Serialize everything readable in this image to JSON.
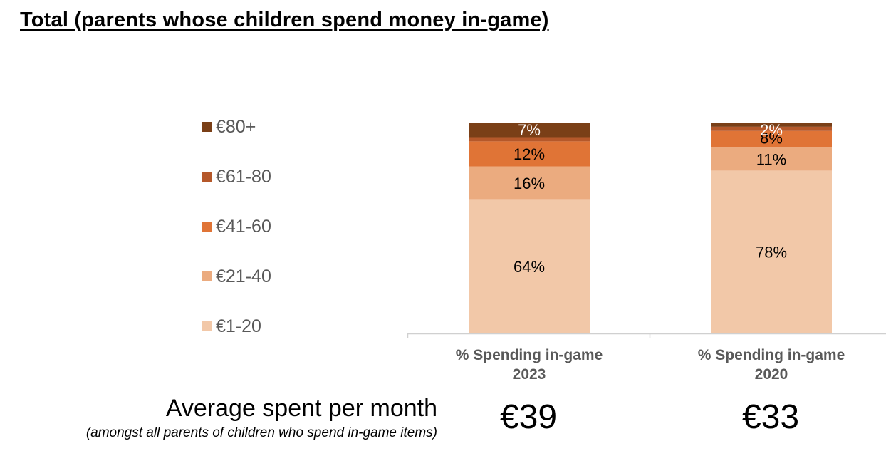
{
  "title": "Total (parents whose children spend money in-game)",
  "chart_data": {
    "type": "bar",
    "stacked": true,
    "categories": [
      [
        "% Spending in-game",
        "2023"
      ],
      [
        "% Spending in-game",
        "2020"
      ]
    ],
    "series": [
      {
        "name": "€1-20",
        "values": [
          64,
          78
        ],
        "color": "#F2C8A8",
        "label_color": "#000000"
      },
      {
        "name": "€21-40",
        "values": [
          16,
          11
        ],
        "color": "#EBAB7F",
        "label_color": "#000000"
      },
      {
        "name": "€41-60",
        "values": [
          12,
          8
        ],
        "color": "#E07436",
        "label_color": "#000000"
      },
      {
        "name": "€61-80",
        "values": [
          2,
          2
        ],
        "color": "#B5582A",
        "label_color": "#000000"
      },
      {
        "name": "€80+",
        "values": [
          7,
          2
        ],
        "color": "#7A3F17",
        "label_color": "#ffffff"
      }
    ],
    "data_labels": [
      [
        "64%",
        "16%",
        "12%",
        "",
        "7%"
      ],
      [
        "78%",
        "11%",
        "8%",
        "",
        "2%"
      ]
    ],
    "legend_position": "left",
    "grid": false
  },
  "average": {
    "label": "Average spent per month",
    "note": "(amongst all parents of children who spend in-game items)",
    "values": [
      "€39",
      "€33"
    ]
  }
}
